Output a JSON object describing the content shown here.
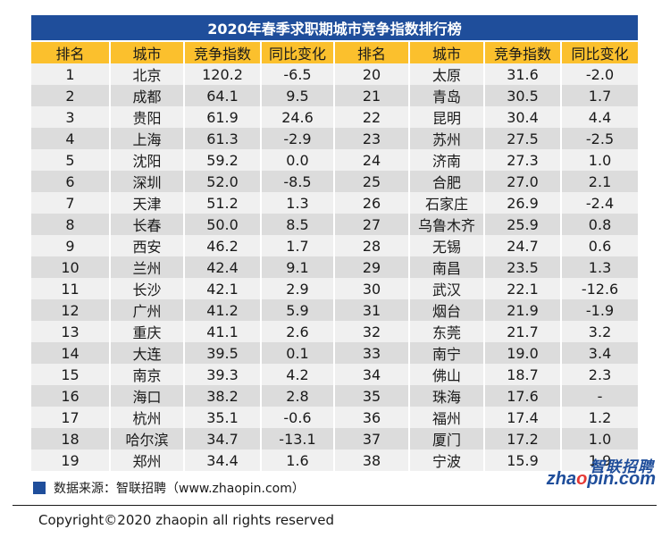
{
  "title": "2020年春季求职期城市竞争指数排行榜",
  "headers": [
    "排名",
    "城市",
    "竞争指数",
    "同比变化",
    "排名",
    "城市",
    "竞争指数",
    "同比变化"
  ],
  "rows": [
    [
      "1",
      "北京",
      "120.2",
      "-6.5",
      "20",
      "太原",
      "31.6",
      "-2.0"
    ],
    [
      "2",
      "成都",
      "64.1",
      "9.5",
      "21",
      "青岛",
      "30.5",
      "1.7"
    ],
    [
      "3",
      "贵阳",
      "61.9",
      "24.6",
      "22",
      "昆明",
      "30.4",
      "4.4"
    ],
    [
      "4",
      "上海",
      "61.3",
      "-2.9",
      "23",
      "苏州",
      "27.5",
      "-2.5"
    ],
    [
      "5",
      "沈阳",
      "59.2",
      "0.0",
      "24",
      "济南",
      "27.3",
      "1.0"
    ],
    [
      "6",
      "深圳",
      "52.0",
      "-8.5",
      "25",
      "合肥",
      "27.0",
      "2.1"
    ],
    [
      "7",
      "天津",
      "51.2",
      "1.3",
      "26",
      "石家庄",
      "26.9",
      "-2.4"
    ],
    [
      "8",
      "长春",
      "50.0",
      "8.5",
      "27",
      "乌鲁木齐",
      "25.9",
      "0.8"
    ],
    [
      "9",
      "西安",
      "46.2",
      "1.7",
      "28",
      "无锡",
      "24.7",
      "0.6"
    ],
    [
      "10",
      "兰州",
      "42.4",
      "9.1",
      "29",
      "南昌",
      "23.5",
      "1.3"
    ],
    [
      "11",
      "长沙",
      "42.1",
      "2.9",
      "30",
      "武汉",
      "22.1",
      "-12.6"
    ],
    [
      "12",
      "广州",
      "41.2",
      "5.9",
      "31",
      "烟台",
      "21.9",
      "-1.9"
    ],
    [
      "13",
      "重庆",
      "41.1",
      "2.6",
      "32",
      "东莞",
      "21.7",
      "3.2"
    ],
    [
      "14",
      "大连",
      "39.5",
      "0.1",
      "33",
      "南宁",
      "19.0",
      "3.4"
    ],
    [
      "15",
      "南京",
      "39.3",
      "4.2",
      "34",
      "佛山",
      "18.7",
      "2.3"
    ],
    [
      "16",
      "海口",
      "38.2",
      "2.8",
      "35",
      "珠海",
      "17.6",
      "-"
    ],
    [
      "17",
      "杭州",
      "35.1",
      "-0.6",
      "36",
      "福州",
      "17.4",
      "1.2"
    ],
    [
      "18",
      "哈尔滨",
      "34.7",
      "-13.1",
      "37",
      "厦门",
      "17.2",
      "1.0"
    ],
    [
      "19",
      "郑州",
      "34.4",
      "1.6",
      "38",
      "宁波",
      "15.9",
      "1.9"
    ]
  ],
  "source": "数据来源：智联招聘（www.zhaopin.com）",
  "logo": {
    "cn": "智联招聘",
    "en_prefix": "zha",
    "en_o": "o",
    "en_suffix": "pin.com"
  },
  "copyright": "Copyright©2020 zhaopin all rights reserved",
  "colors": {
    "title_bg": "#1f4e9b",
    "header_bg": "#fbc02d",
    "row_odd": "#f0f0f0",
    "row_even": "#dcdcdc"
  }
}
